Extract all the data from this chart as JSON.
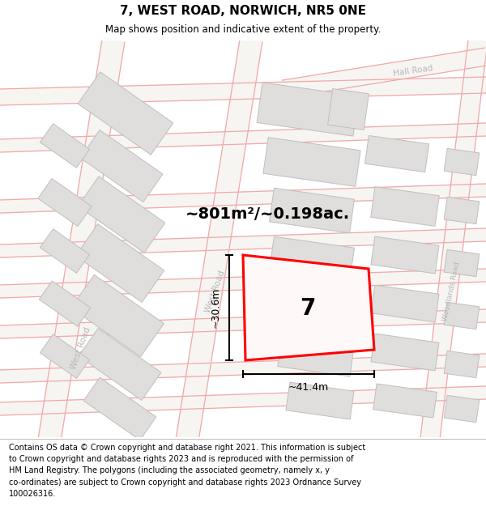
{
  "title_line1": "7, WEST ROAD, NORWICH, NR5 0NE",
  "title_line2": "Map shows position and indicative extent of the property.",
  "area_text": "~801m²/~0.198ac.",
  "label_number": "7",
  "dim_width": "~41.4m",
  "dim_height": "~30.6m",
  "footer_text": "Contains OS data © Crown copyright and database right 2021. This information is subject\nto Crown copyright and database rights 2023 and is reproduced with the permission of\nHM Land Registry. The polygons (including the associated geometry, namely x, y\nco-ordinates) are subject to Crown copyright and database rights 2023 Ordnance Survey\n100026316.",
  "bg_color": "#f7f5f2",
  "building_fill": "#e0dedd",
  "building_edge": "#c0bebe",
  "red_poly_color": "#ff0000",
  "road_line_color": "#f0a8a8",
  "road_label_color": "#b8b8b8",
  "title_bg": "#ffffff",
  "footer_bg": "#ffffff"
}
